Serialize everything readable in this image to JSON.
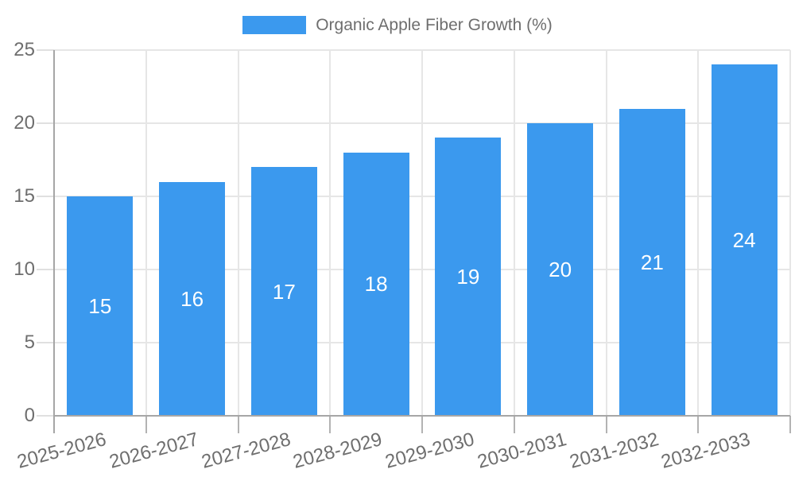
{
  "colors": {
    "bar": "#3b99ee",
    "bar_label": "#ffffff",
    "text": "#6e6e6e",
    "gridline": "#e6e6e6",
    "y_tick": "#e0e0e0",
    "x_tick": "#b3b3b3",
    "axis": "#a6a6a6",
    "background": "#ffffff"
  },
  "chart_data": {
    "type": "bar",
    "title": "",
    "series_label": "Organic Apple Fiber Growth (%)",
    "categories": [
      "2025-2026",
      "2026-2027",
      "2027-2028",
      "2028-2029",
      "2029-2030",
      "2030-2031",
      "2031-2032",
      "2032-2033"
    ],
    "values": [
      15,
      16,
      17,
      18,
      19,
      20,
      21,
      24
    ],
    "bar_value_labels": [
      "15",
      "16",
      "17",
      "18",
      "19",
      "20",
      "21",
      "24"
    ],
    "xlabel": "",
    "ylabel": "",
    "ylim": [
      0,
      25
    ],
    "yticks": [
      0,
      5,
      10,
      15,
      20,
      25
    ],
    "ytick_labels": [
      "0",
      "5",
      "10",
      "15",
      "20",
      "25"
    ],
    "grid": true,
    "legend_position": "top",
    "x_label_rotation_deg": -15,
    "bar_labels_inside": true
  }
}
